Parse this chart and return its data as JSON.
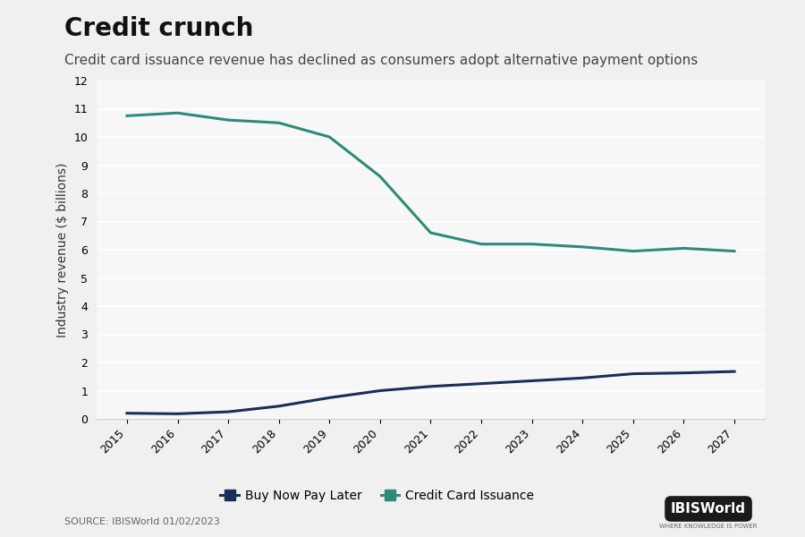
{
  "title": "Credit crunch",
  "subtitle": "Credit card issuance revenue has declined as consumers adopt alternative payment options",
  "ylabel": "Industry revenue ($ billions)",
  "source": "SOURCE: IBISWorld 01/02/2023",
  "years": [
    2015,
    2016,
    2017,
    2018,
    2019,
    2020,
    2021,
    2022,
    2023,
    2024,
    2025,
    2026,
    2027
  ],
  "bnpl": [
    0.2,
    0.18,
    0.25,
    0.45,
    0.75,
    1.0,
    1.15,
    1.25,
    1.35,
    1.45,
    1.6,
    1.63,
    1.68
  ],
  "credit_card": [
    10.75,
    10.85,
    10.6,
    10.5,
    10.0,
    8.6,
    6.6,
    6.2,
    6.2,
    6.1,
    5.95,
    6.05,
    5.95
  ],
  "bnpl_color": "#1a2e5a",
  "credit_card_color": "#2d8b7a",
  "background_color": "#f0f0f0",
  "plot_background_color": "#f7f7f7",
  "ylim": [
    0,
    12
  ],
  "yticks": [
    0,
    1,
    2,
    3,
    4,
    5,
    6,
    7,
    8,
    9,
    10,
    11,
    12
  ],
  "legend_labels": [
    "Buy Now Pay Later",
    "Credit Card Issuance"
  ],
  "title_fontsize": 20,
  "subtitle_fontsize": 11,
  "axis_label_fontsize": 10,
  "tick_fontsize": 9,
  "legend_fontsize": 10,
  "line_width": 2.2
}
